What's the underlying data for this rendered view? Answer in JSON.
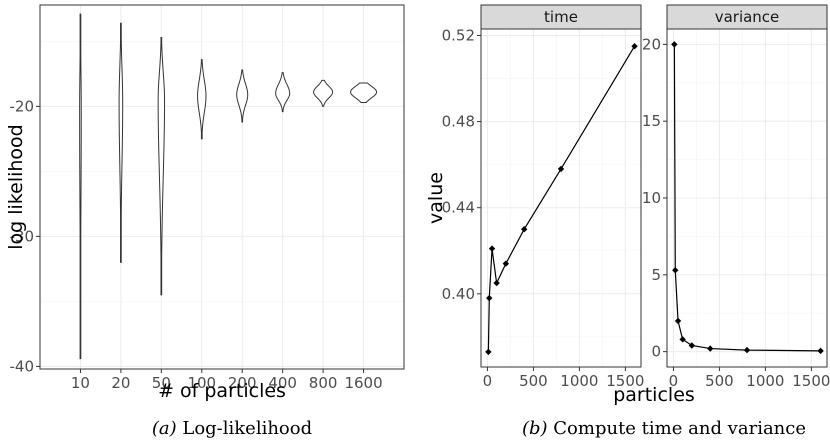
{
  "chart_data": [
    {
      "type": "violin",
      "caption": "(a) Log-likelihood",
      "caption_prefix": "(a)",
      "caption_text": "Log-likelihood",
      "xlabel": "# of particles",
      "ylabel": "log likelihood",
      "categories": [
        "10",
        "20",
        "50",
        "100",
        "200",
        "400",
        "800",
        "1600"
      ],
      "yticks": [
        -40,
        -30,
        -20
      ],
      "ylim": [
        -40.2,
        -12.2
      ],
      "grid": true,
      "violins": [
        {
          "category": "10",
          "min": -39.4,
          "max": -12.9,
          "mode": -20.3,
          "peak_halfwidth": 0.8
        },
        {
          "category": "20",
          "min": -32.0,
          "max": -13.6,
          "mode": -19.7,
          "peak_halfwidth": 1.8
        },
        {
          "category": "50",
          "min": -34.5,
          "max": -14.7,
          "mode": -19.5,
          "peak_halfwidth": 3.2
        },
        {
          "category": "100",
          "min": -22.5,
          "max": -16.4,
          "mode": -19.2,
          "peak_halfwidth": 4.2
        },
        {
          "category": "200",
          "min": -21.2,
          "max": -17.2,
          "mode": -19.1,
          "peak_halfwidth": 5.5
        },
        {
          "category": "400",
          "min": -20.4,
          "max": -17.4,
          "mode": -19.0,
          "peak_halfwidth": 7.0
        },
        {
          "category": "800",
          "min": -20.0,
          "max": -18.0,
          "mode": -18.9,
          "peak_halfwidth": 9.5
        },
        {
          "category": "1600",
          "min": -19.7,
          "max": -18.2,
          "mode": -18.9,
          "peak_halfwidth": 13.0
        }
      ]
    },
    {
      "type": "line",
      "caption": "(b) Compute time and variance",
      "caption_prefix": "(b)",
      "caption_text": "Compute time and variance",
      "xlabel": "particles",
      "ylabel": "value",
      "grid": true,
      "facets": [
        {
          "strip": "time",
          "x": [
            10,
            20,
            50,
            100,
            200,
            400,
            800,
            1600
          ],
          "y": [
            0.373,
            0.398,
            0.421,
            0.405,
            0.414,
            0.43,
            0.458,
            0.515
          ],
          "xlim": [
            -70,
            1670
          ],
          "ylim": [
            0.366,
            0.523
          ],
          "xticks": [
            0,
            500,
            1000,
            1500
          ],
          "yticks": [
            0.4,
            0.44,
            0.48,
            0.52
          ],
          "ytick_labels": [
            "0.40",
            "0.44",
            "0.48",
            "0.52"
          ]
        },
        {
          "strip": "variance",
          "x": [
            10,
            20,
            50,
            100,
            200,
            400,
            800,
            1600
          ],
          "y": [
            20.0,
            5.3,
            2.0,
            0.8,
            0.4,
            0.2,
            0.1,
            0.05
          ],
          "xlim": [
            -70,
            1670
          ],
          "ylim": [
            -1.0,
            21.0
          ],
          "xticks": [
            0,
            500,
            1000,
            1500
          ],
          "yticks": [
            0,
            5,
            10,
            15,
            20
          ],
          "ytick_labels": [
            "0",
            "5",
            "10",
            "15",
            "20"
          ]
        }
      ]
    }
  ]
}
